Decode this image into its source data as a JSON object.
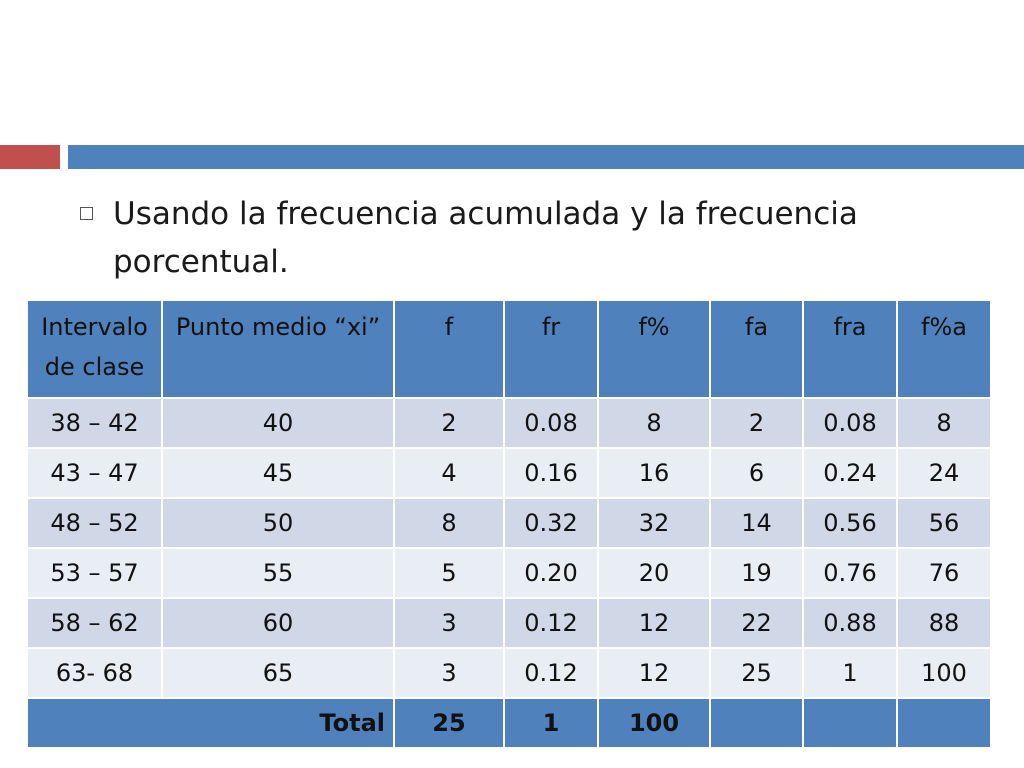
{
  "slide": {
    "bullet": "Usando la frecuencia acumulada y la frecuencia porcentual."
  },
  "table": {
    "headers": [
      "Intervalo de clase",
      "Punto medio “xi”",
      "f",
      "fr",
      "f%",
      "fa",
      "fra",
      "f%a"
    ],
    "rows": [
      [
        "38 – 42",
        "40",
        "2",
        "0.08",
        "8",
        "2",
        "0.08",
        "8"
      ],
      [
        "43 – 47",
        "45",
        "4",
        "0.16",
        "16",
        "6",
        "0.24",
        "24"
      ],
      [
        "48 – 52",
        "50",
        "8",
        "0.32",
        "32",
        "14",
        "0.56",
        "56"
      ],
      [
        "53 – 57",
        "55",
        "5",
        "0.20",
        "20",
        "19",
        "0.76",
        "76"
      ],
      [
        "58 – 62",
        "60",
        "3",
        "0.12",
        "12",
        "22",
        "0.88",
        "88"
      ],
      [
        "63- 68",
        "65",
        "3",
        "0.12",
        "12",
        "25",
        "1",
        "100"
      ]
    ],
    "total": {
      "label": "Total",
      "f": "25",
      "fr": "1",
      "fp": "100"
    }
  },
  "colors": {
    "accent_red": "#c0504d",
    "accent_blue": "#4f81bd",
    "row_dark": "#d0d8e8",
    "row_light": "#e9edf4"
  }
}
